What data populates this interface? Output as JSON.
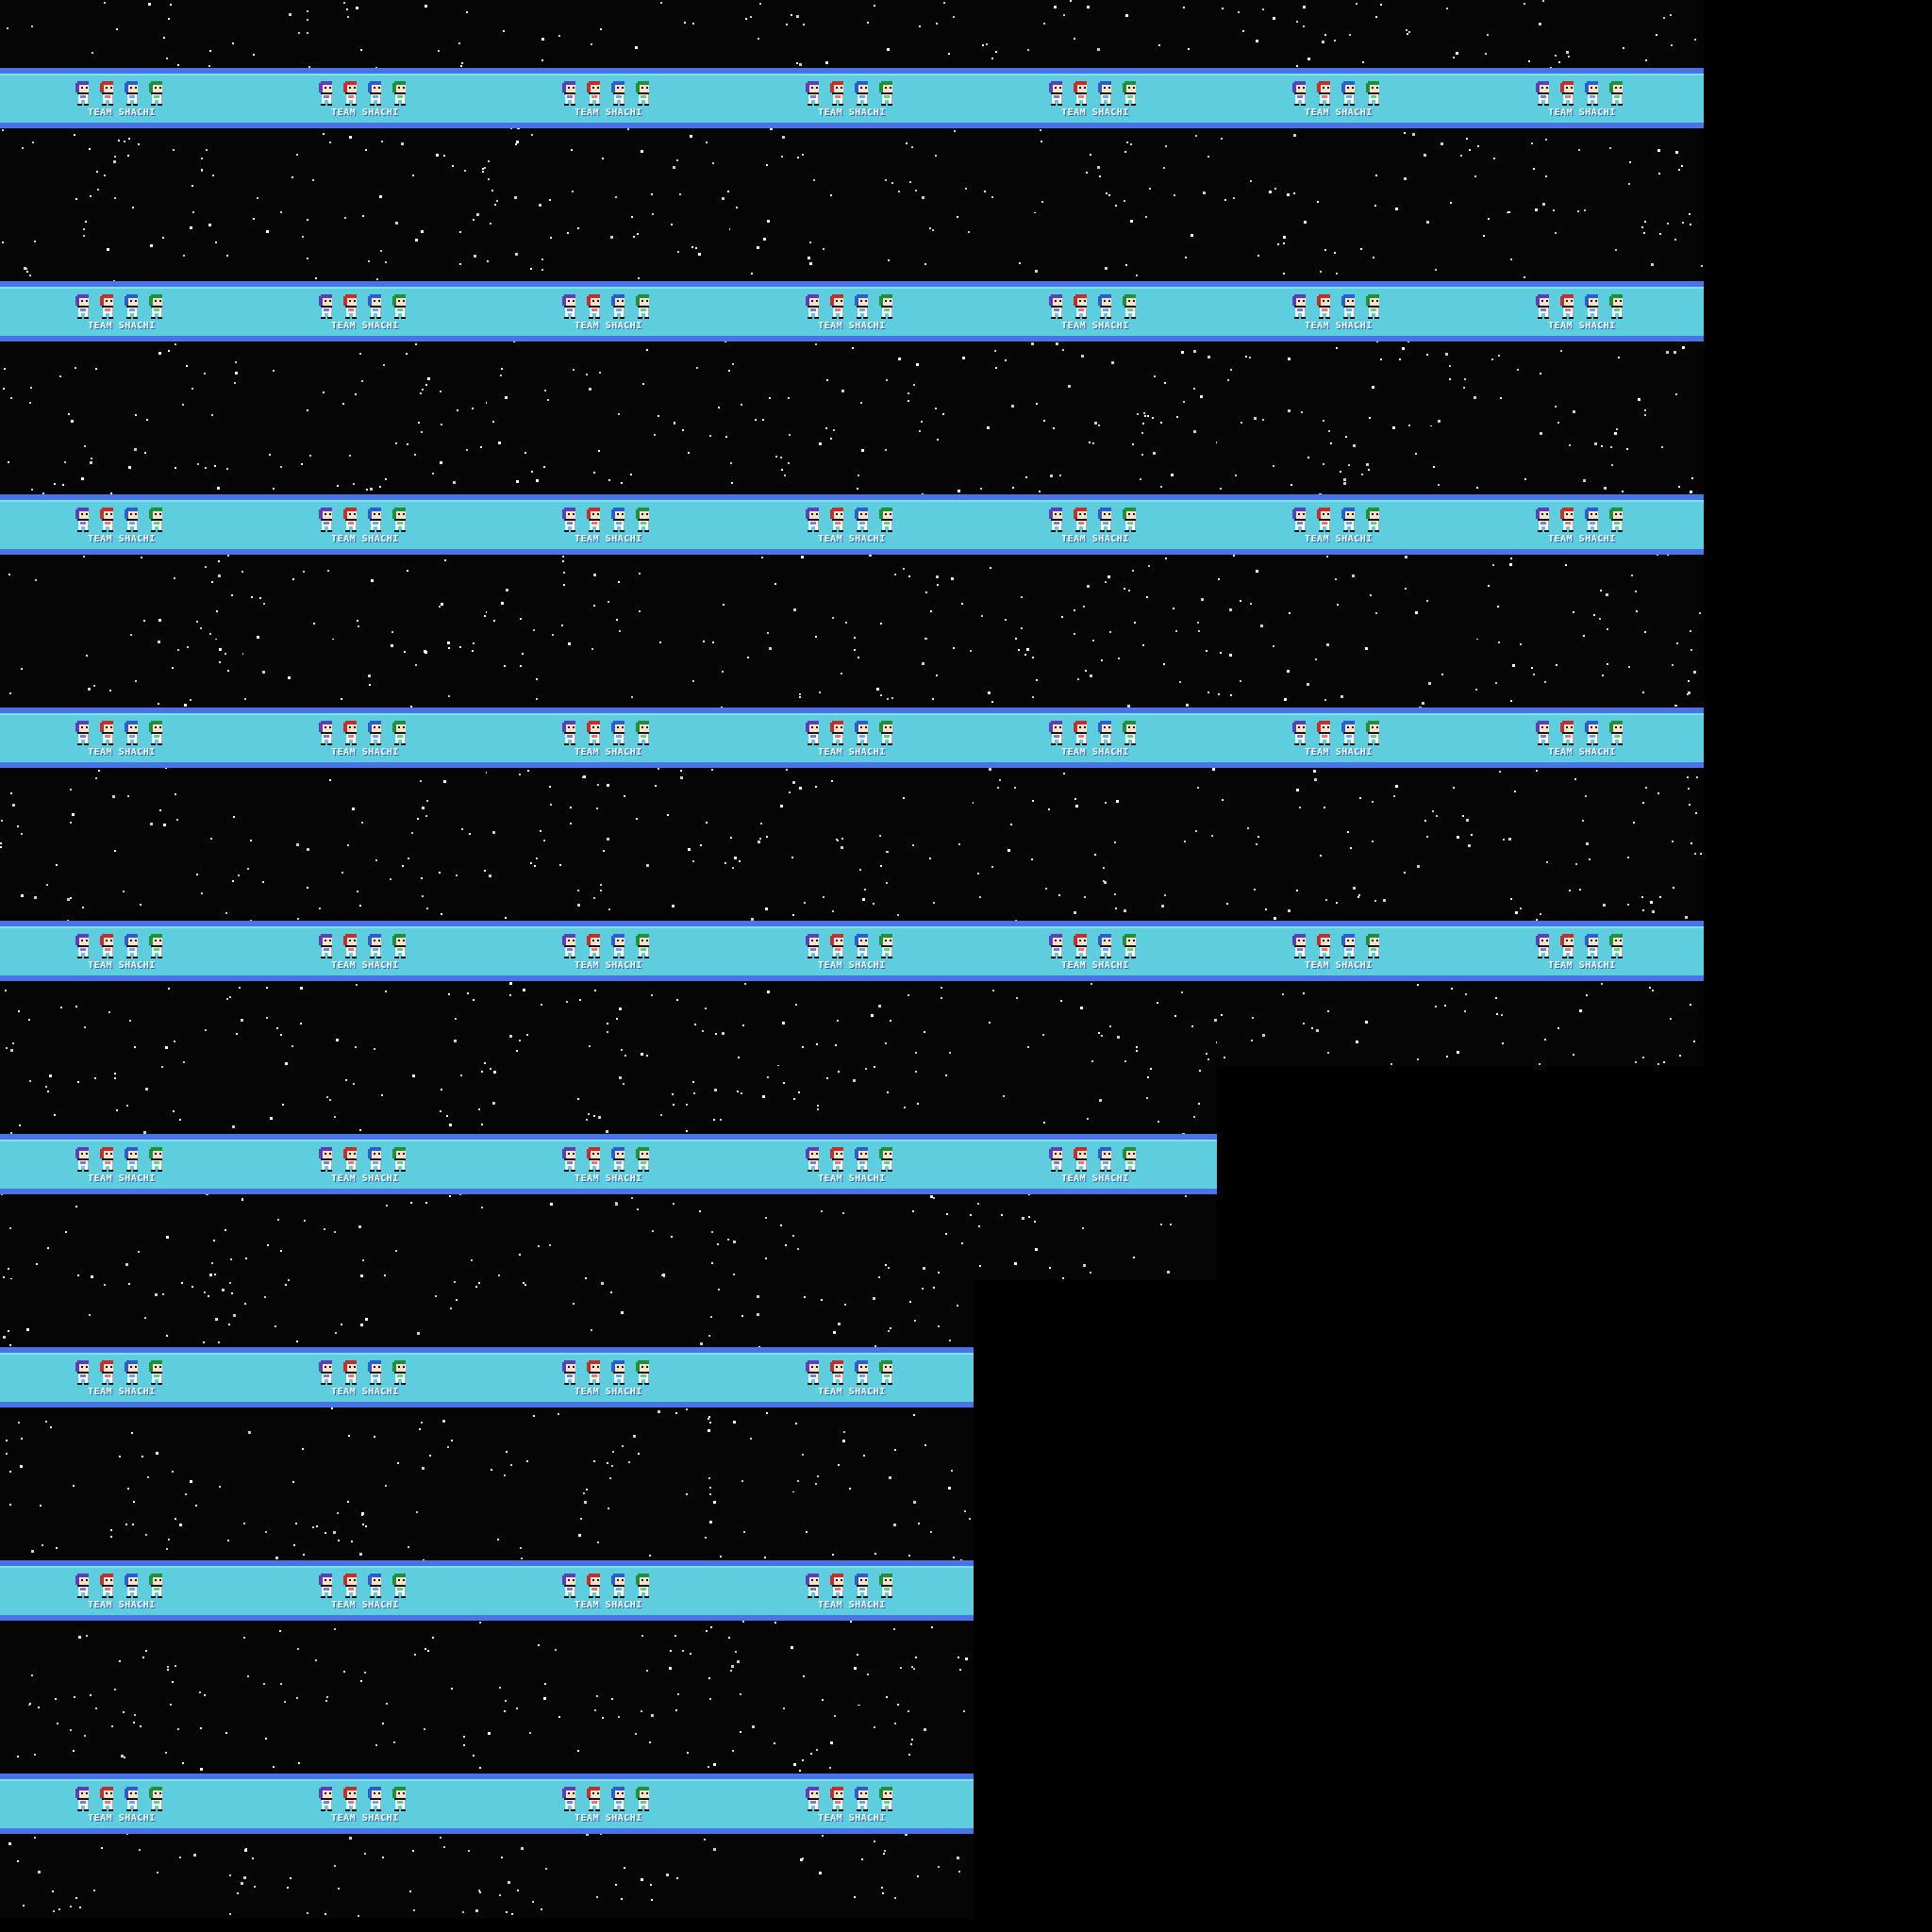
{
  "sprite_sheet": {
    "background_color": "#050505",
    "banner_color": "#5ecedf",
    "banner_border_color": "#4a73e6",
    "rows": [
      7,
      7,
      7,
      7,
      7,
      5,
      4,
      4,
      4
    ],
    "label": "TEAM SHACHI",
    "characters": [
      {
        "name": "purple",
        "hair": "#5a3fb5",
        "accent": "#8c6fe0"
      },
      {
        "name": "red",
        "hair": "#c0302f",
        "accent": "#ff6f6a"
      },
      {
        "name": "blue",
        "hair": "#2a5fc9",
        "accent": "#6fa2ff"
      },
      {
        "name": "green",
        "hair": "#1f8f3a",
        "accent": "#63d36f"
      }
    ],
    "icons": [
      "pixel-character-icon",
      "starfield"
    ]
  }
}
